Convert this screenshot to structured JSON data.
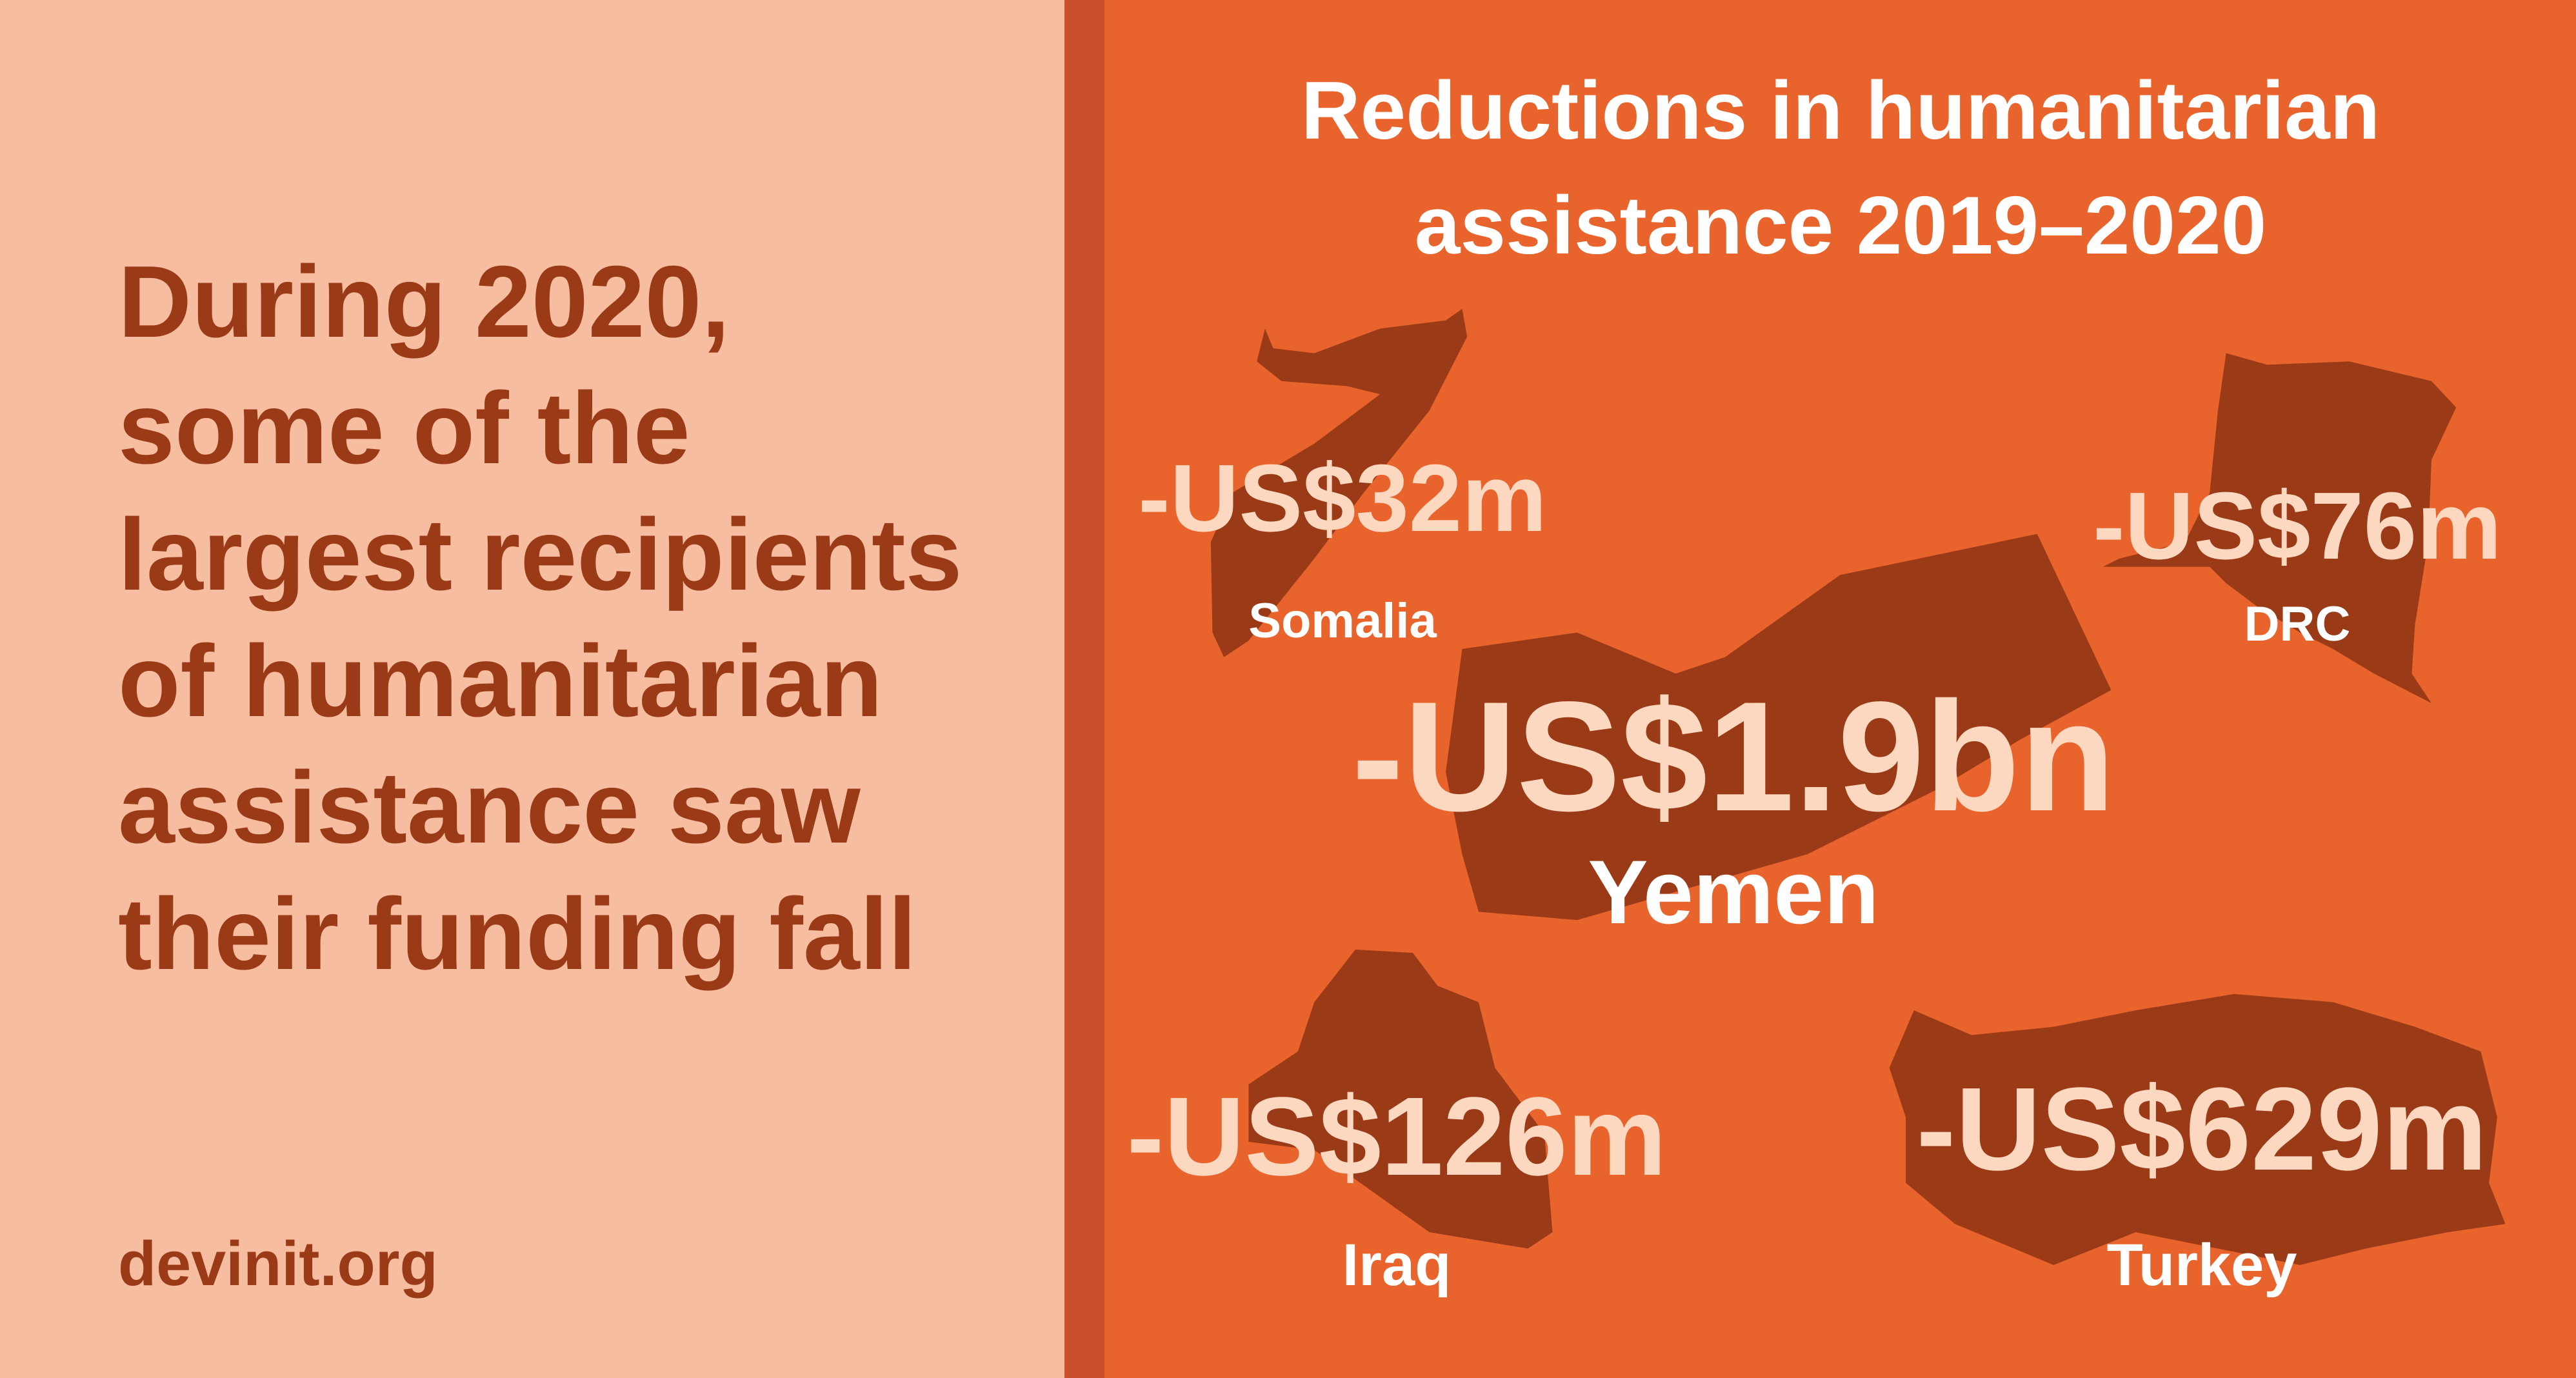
{
  "headline": {
    "lines": [
      "During 2020,",
      "some of the",
      "largest recipients",
      "of humanitarian",
      "assistance saw",
      "their funding fall"
    ]
  },
  "source": "devinit.org",
  "panel": {
    "title_lines": [
      "Reductions in humanitarian",
      "assistance 2019–2020"
    ],
    "countries": [
      {
        "value": "-US$32m",
        "name": "Somalia"
      },
      {
        "value": "-US$76m",
        "name": "DRC"
      },
      {
        "value": "-US$1.9bn",
        "name": "Yemen"
      },
      {
        "value": "-US$126m",
        "name": "Iraq"
      },
      {
        "value": "-US$629m",
        "name": "Turkey"
      }
    ]
  }
}
